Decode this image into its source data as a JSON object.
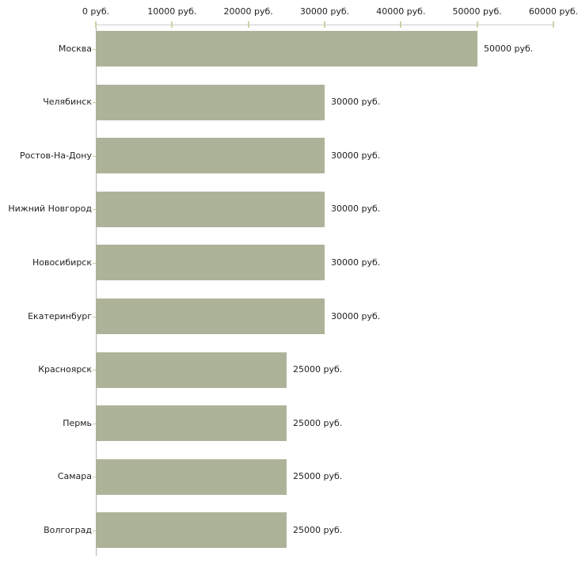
{
  "chart_data": {
    "type": "bar",
    "orientation": "horizontal",
    "title": "",
    "xlabel": "",
    "ylabel": "",
    "categories": [
      "Москва",
      "Челябинск",
      "Ростов-На-Дону",
      "Нижний Новгород",
      "Новосибирск",
      "Екатеринбург",
      "Красноярск",
      "Пермь",
      "Самара",
      "Волгоград"
    ],
    "values": [
      50000,
      30000,
      30000,
      30000,
      30000,
      30000,
      25000,
      25000,
      25000,
      25000
    ],
    "value_labels": [
      "50000 руб.",
      "30000 руб.",
      "30000 руб.",
      "30000 руб.",
      "30000 руб.",
      "30000 руб.",
      "25000 руб.",
      "25000 руб.",
      "25000 руб.",
      "25000 руб."
    ],
    "x_axis": {
      "position": "top",
      "ticks": [
        0,
        10000,
        20000,
        30000,
        40000,
        50000,
        60000
      ],
      "tick_labels": [
        "0 руб.",
        "10000 руб.",
        "20000 руб.",
        "30000 руб.",
        "40000 руб.",
        "50000 руб.",
        "60000 руб."
      ]
    },
    "xlim": [
      0,
      60000
    ],
    "grid": false,
    "legend": null,
    "colors": {
      "bar": "#adb399",
      "axis_line": "#cccccc",
      "y_axis_line": "#b5b5b5",
      "tick": "#cfcfa6",
      "text": "#1f1f1f",
      "background": "#ffffff"
    }
  }
}
